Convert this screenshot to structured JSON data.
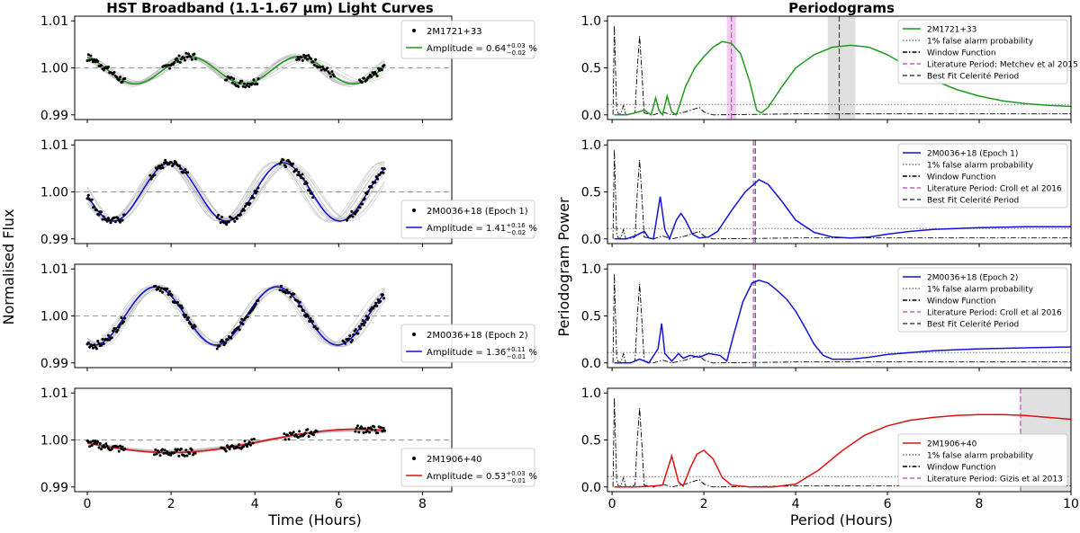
{
  "titles": {
    "left": "HST Broadband (1.1-1.67 μm) Light Curves",
    "right": "Periodograms"
  },
  "axes": {
    "left_ylabel": "Normalised Flux",
    "right_ylabel": "Periodogram Power",
    "left_xlabel": "Time (Hours)",
    "right_xlabel": "Period (Hours)",
    "lc_yticks": [
      "1.01",
      "1.00",
      "0.99"
    ],
    "lc_xticks": [
      "0",
      "2",
      "4",
      "6",
      "8"
    ],
    "pg_yticks": [
      "1.0",
      "0.5",
      "0.0"
    ],
    "pg_xticks": [
      "0",
      "2",
      "4",
      "6",
      "8",
      "10"
    ]
  },
  "legend_common": {
    "fap": "1% false alarm probability",
    "window": "Window Function",
    "bestfit": "Best Fit Celerité Period"
  },
  "colors": {
    "green": "#1f9a1f",
    "blue": "#1414d8",
    "red": "#e01010",
    "lit_period": "#c060c0",
    "shade_pink": "#f0c8f0",
    "shade_gray": "#d8d8d8"
  },
  "chart_data": [
    {
      "type": "scatter",
      "panel": "lightcurve-1",
      "name": "2M1721+33",
      "amplitude": "0.64",
      "amp_up": "+0.03",
      "amp_down": "−0.02",
      "unit": "%",
      "series_color": "green",
      "xlim": [
        -0.3,
        8.7
      ],
      "ylim": [
        0.989,
        1.011
      ],
      "model_params": {
        "period": 2.6,
        "amp": 0.0029,
        "phase": 1.8,
        "offset": 0.9995
      },
      "data_segments": [
        [
          0.0,
          0.9
        ],
        [
          1.8,
          2.6
        ],
        [
          3.3,
          4.1
        ],
        [
          5.0,
          5.9
        ],
        [
          6.5,
          7.1
        ]
      ]
    },
    {
      "type": "scatter",
      "panel": "lightcurve-2",
      "name": "2M0036+18 (Epoch 1)",
      "amplitude": "1.41",
      "amp_up": "+0.16",
      "amp_down": "−0.02",
      "unit": "%",
      "series_color": "blue",
      "xlim": [
        -0.3,
        8.7
      ],
      "ylim": [
        0.989,
        1.011
      ],
      "model_params": {
        "period": 2.7,
        "amp": 0.0062,
        "phase": 1.3,
        "offset": 1.0
      },
      "data_segments": [
        [
          0.0,
          0.9
        ],
        [
          1.5,
          2.4
        ],
        [
          3.1,
          4.1
        ],
        [
          4.6,
          5.4
        ],
        [
          6.2,
          7.1
        ]
      ]
    },
    {
      "type": "scatter",
      "panel": "lightcurve-3",
      "name": "2M0036+18 (Epoch 2)",
      "amplitude": "1.36",
      "amp_up": "+0.11",
      "amp_down": "−0.01",
      "unit": "%",
      "series_color": "blue",
      "xlim": [
        -0.3,
        8.7
      ],
      "ylim": [
        0.989,
        1.011
      ],
      "model_params": {
        "period": 2.9,
        "amp": 0.0062,
        "phase": 0.9,
        "offset": 1.0
      },
      "data_segments": [
        [
          0.0,
          0.9
        ],
        [
          1.6,
          2.6
        ],
        [
          3.1,
          4.1
        ],
        [
          4.6,
          5.5
        ],
        [
          6.1,
          7.1
        ]
      ]
    },
    {
      "type": "scatter",
      "panel": "lightcurve-4",
      "name": "2M1906+40",
      "amplitude": "0.53",
      "amp_up": "+0.03",
      "amp_down": "−0.01",
      "unit": "%",
      "series_color": "red",
      "xlim": [
        -0.3,
        8.7
      ],
      "ylim": [
        0.989,
        1.011
      ],
      "model_params": {
        "period": 8.9,
        "amp": 0.0025,
        "phase": 4.2,
        "offset": 0.9998
      },
      "data_segments": [
        [
          0.0,
          0.9
        ],
        [
          1.6,
          2.6
        ],
        [
          3.2,
          4.0
        ],
        [
          4.7,
          5.5
        ],
        [
          6.4,
          7.1
        ]
      ]
    },
    {
      "type": "line",
      "panel": "periodogram-1",
      "name": "2M1721+33",
      "series_color": "green",
      "xlim": [
        -0.1,
        10
      ],
      "ylim": [
        -0.05,
        1.05
      ],
      "fap_level": 0.11,
      "lit_label": "Literature Period: Metchev et al 2015",
      "lit_period": 2.6,
      "lit_band": [
        2.5,
        2.7
      ],
      "best_period": 4.95,
      "best_band": [
        4.7,
        5.3
      ],
      "show_bestfit": true,
      "legend_pos": "top-right",
      "curve": [
        [
          0.05,
          0.0
        ],
        [
          0.3,
          0.0
        ],
        [
          0.5,
          0.02
        ],
        [
          0.7,
          0.05
        ],
        [
          0.85,
          0.0
        ],
        [
          0.95,
          0.18
        ],
        [
          1.02,
          0.05
        ],
        [
          1.1,
          0.0
        ],
        [
          1.2,
          0.2
        ],
        [
          1.3,
          0.03
        ],
        [
          1.4,
          0.0
        ],
        [
          1.6,
          0.3
        ],
        [
          1.8,
          0.5
        ],
        [
          2.0,
          0.62
        ],
        [
          2.2,
          0.72
        ],
        [
          2.4,
          0.78
        ],
        [
          2.6,
          0.76
        ],
        [
          2.8,
          0.65
        ],
        [
          3.0,
          0.35
        ],
        [
          3.15,
          0.05
        ],
        [
          3.25,
          0.02
        ],
        [
          3.4,
          0.08
        ],
        [
          3.7,
          0.3
        ],
        [
          4.0,
          0.5
        ],
        [
          4.4,
          0.64
        ],
        [
          4.8,
          0.72
        ],
        [
          5.2,
          0.74
        ],
        [
          5.6,
          0.72
        ],
        [
          6.0,
          0.64
        ],
        [
          6.5,
          0.5
        ],
        [
          7.0,
          0.37
        ],
        [
          7.5,
          0.27
        ],
        [
          8.0,
          0.2
        ],
        [
          8.5,
          0.15
        ],
        [
          9.0,
          0.12
        ],
        [
          9.5,
          0.1
        ],
        [
          10.0,
          0.09
        ]
      ]
    },
    {
      "type": "line",
      "panel": "periodogram-2",
      "name": "2M0036+18 (Epoch 1)",
      "series_color": "blue",
      "xlim": [
        -0.1,
        10
      ],
      "ylim": [
        -0.05,
        1.05
      ],
      "fap_level": 0.11,
      "lit_label": "Literature Period: Croll et al 2016",
      "lit_period": 3.08,
      "best_period": 3.12,
      "show_bestfit": true,
      "legend_pos": "top-right",
      "curve": [
        [
          0.05,
          0.0
        ],
        [
          0.3,
          0.0
        ],
        [
          0.5,
          0.03
        ],
        [
          0.7,
          0.08
        ],
        [
          0.8,
          0.01
        ],
        [
          0.9,
          0.0
        ],
        [
          1.05,
          0.45
        ],
        [
          1.15,
          0.1
        ],
        [
          1.25,
          0.0
        ],
        [
          1.4,
          0.2
        ],
        [
          1.5,
          0.27
        ],
        [
          1.6,
          0.2
        ],
        [
          1.75,
          0.05
        ],
        [
          1.9,
          0.01
        ],
        [
          2.1,
          0.02
        ],
        [
          2.3,
          0.08
        ],
        [
          2.6,
          0.3
        ],
        [
          2.9,
          0.5
        ],
        [
          3.2,
          0.63
        ],
        [
          3.4,
          0.58
        ],
        [
          3.7,
          0.4
        ],
        [
          4.0,
          0.2
        ],
        [
          4.4,
          0.07
        ],
        [
          4.8,
          0.02
        ],
        [
          5.2,
          0.01
        ],
        [
          5.6,
          0.02
        ],
        [
          6.0,
          0.05
        ],
        [
          6.5,
          0.08
        ],
        [
          7.0,
          0.1
        ],
        [
          7.5,
          0.11
        ],
        [
          8.0,
          0.12
        ],
        [
          9.0,
          0.13
        ],
        [
          10.0,
          0.13
        ]
      ]
    },
    {
      "type": "line",
      "panel": "periodogram-3",
      "name": "2M0036+18 (Epoch 2)",
      "series_color": "blue",
      "xlim": [
        -0.1,
        10
      ],
      "ylim": [
        -0.05,
        1.05
      ],
      "fap_level": 0.11,
      "lit_label": "Literature Period: Croll et al 2016",
      "lit_period": 3.08,
      "best_period": 3.12,
      "show_bestfit": true,
      "legend_pos": "top-right",
      "curve": [
        [
          0.05,
          0.0
        ],
        [
          0.4,
          0.0
        ],
        [
          0.6,
          0.04
        ],
        [
          0.8,
          0.0
        ],
        [
          1.0,
          0.15
        ],
        [
          1.08,
          0.42
        ],
        [
          1.15,
          0.1
        ],
        [
          1.3,
          0.02
        ],
        [
          1.45,
          0.1
        ],
        [
          1.55,
          0.05
        ],
        [
          1.7,
          0.08
        ],
        [
          1.9,
          0.06
        ],
        [
          2.1,
          0.1
        ],
        [
          2.35,
          0.08
        ],
        [
          2.5,
          0.02
        ],
        [
          2.65,
          0.3
        ],
        [
          2.85,
          0.65
        ],
        [
          3.05,
          0.85
        ],
        [
          3.2,
          0.88
        ],
        [
          3.4,
          0.85
        ],
        [
          3.6,
          0.77
        ],
        [
          3.8,
          0.68
        ],
        [
          4.0,
          0.55
        ],
        [
          4.2,
          0.38
        ],
        [
          4.4,
          0.2
        ],
        [
          4.6,
          0.08
        ],
        [
          4.8,
          0.04
        ],
        [
          5.2,
          0.04
        ],
        [
          5.6,
          0.06
        ],
        [
          6.0,
          0.09
        ],
        [
          6.5,
          0.11
        ],
        [
          7.0,
          0.13
        ],
        [
          7.5,
          0.14
        ],
        [
          8.0,
          0.15
        ],
        [
          9.0,
          0.16
        ],
        [
          10.0,
          0.17
        ]
      ]
    },
    {
      "type": "line",
      "panel": "periodogram-4",
      "name": "2M1906+40",
      "series_color": "red",
      "xlim": [
        -0.1,
        10
      ],
      "ylim": [
        -0.05,
        1.05
      ],
      "fap_level": 0.11,
      "lit_label": "Literature Period: Gizis et al 2013",
      "lit_period": 8.9,
      "best_band": [
        8.9,
        10.0
      ],
      "show_bestfit": false,
      "legend_pos": "center-right",
      "curve": [
        [
          0.05,
          0.0
        ],
        [
          0.5,
          0.0
        ],
        [
          0.9,
          0.01
        ],
        [
          1.1,
          0.02
        ],
        [
          1.3,
          0.33
        ],
        [
          1.45,
          0.05
        ],
        [
          1.55,
          0.01
        ],
        [
          1.7,
          0.2
        ],
        [
          1.85,
          0.35
        ],
        [
          2.0,
          0.39
        ],
        [
          2.2,
          0.3
        ],
        [
          2.4,
          0.1
        ],
        [
          2.6,
          0.02
        ],
        [
          3.0,
          0.0
        ],
        [
          3.5,
          0.0
        ],
        [
          4.0,
          0.03
        ],
        [
          4.5,
          0.18
        ],
        [
          5.0,
          0.38
        ],
        [
          5.5,
          0.55
        ],
        [
          6.0,
          0.65
        ],
        [
          6.5,
          0.71
        ],
        [
          7.0,
          0.74
        ],
        [
          7.5,
          0.76
        ],
        [
          8.0,
          0.77
        ],
        [
          8.5,
          0.77
        ],
        [
          9.0,
          0.76
        ],
        [
          9.5,
          0.74
        ],
        [
          10.0,
          0.72
        ]
      ]
    }
  ]
}
